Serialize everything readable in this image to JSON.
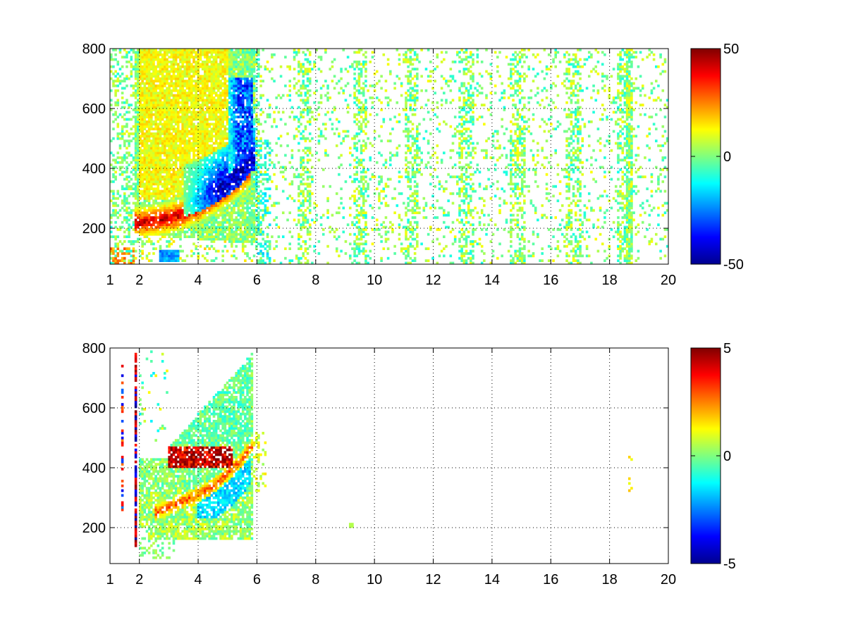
{
  "chart_data": [
    {
      "type": "heatmap",
      "title": "",
      "xlabel": "",
      "ylabel": "",
      "xlim": [
        1,
        20
      ],
      "ylim": [
        80,
        800
      ],
      "x_ticks": [
        1,
        2,
        4,
        6,
        8,
        10,
        12,
        14,
        16,
        18,
        20
      ],
      "x_tick_labels": [
        "1",
        "2",
        "4",
        "6",
        "8",
        "10",
        "12",
        "14",
        "16",
        "18",
        "20"
      ],
      "y_ticks": [
        200,
        400,
        600,
        800
      ],
      "y_tick_labels": [
        "200",
        "400",
        "600",
        "800"
      ],
      "grid": true,
      "colormap": "jet",
      "clim": [
        -50,
        50
      ],
      "colorbar_ticks": [
        -50,
        0,
        50
      ],
      "colorbar_tick_labels": [
        "-50",
        "0",
        "50"
      ],
      "colorbar_placement": "right",
      "features": [
        {
          "kind": "ridge",
          "sign": "positive",
          "x": [
            2.0,
            2.5,
            3.0,
            3.5,
            4.0,
            4.5,
            5.0,
            5.5,
            5.8
          ],
          "y": [
            220,
            225,
            235,
            250,
            270,
            300,
            330,
            370,
            400
          ],
          "peak": 48
        },
        {
          "kind": "ridge",
          "sign": "negative",
          "x": [
            3.5,
            4.0,
            4.5,
            5.0,
            5.5,
            5.8
          ],
          "y": [
            250,
            265,
            290,
            320,
            360,
            400
          ],
          "peak": -48
        },
        {
          "kind": "band",
          "sign": "negative",
          "x": [
            5.0,
            5.9
          ],
          "y": [
            180,
            700
          ],
          "peak": -35
        },
        {
          "kind": "band",
          "sign": "positive",
          "x": [
            2.0,
            5.0
          ],
          "y": [
            300,
            800
          ],
          "peak": 15
        },
        {
          "kind": "spot",
          "sign": "negative",
          "x": 3.0,
          "y": 110,
          "peak": -25
        },
        {
          "kind": "noise",
          "x": [
            6,
            20
          ],
          "y": [
            80,
            800
          ],
          "density": 0.12,
          "amplitude": 12
        },
        {
          "kind": "stripe",
          "x": 18.7,
          "y": [
            80,
            800
          ],
          "amplitude": 12
        }
      ]
    },
    {
      "type": "heatmap",
      "title": "",
      "xlabel": "",
      "ylabel": "",
      "xlim": [
        1,
        20
      ],
      "ylim": [
        80,
        800
      ],
      "x_ticks": [
        1,
        2,
        4,
        6,
        8,
        10,
        12,
        14,
        16,
        18,
        20
      ],
      "x_tick_labels": [
        "1",
        "2",
        "4",
        "6",
        "8",
        "10",
        "12",
        "14",
        "16",
        "18",
        "20"
      ],
      "y_ticks": [
        200,
        400,
        600,
        800
      ],
      "y_tick_labels": [
        "200",
        "400",
        "600",
        "800"
      ],
      "grid": true,
      "colormap": "jet",
      "clim": [
        -5,
        5
      ],
      "colorbar_ticks": [
        -5,
        0,
        5
      ],
      "colorbar_tick_labels": [
        "-5",
        "0",
        "5"
      ],
      "colorbar_placement": "right",
      "features": [
        {
          "kind": "band",
          "sign": "positive",
          "x": [
            3.0,
            5.2
          ],
          "y": [
            400,
            470
          ],
          "peak": 5
        },
        {
          "kind": "ridge",
          "sign": "positive",
          "x": [
            2.5,
            3.0,
            3.5,
            4.0,
            4.5,
            5.0,
            5.5,
            5.8
          ],
          "y": [
            250,
            270,
            290,
            310,
            340,
            380,
            430,
            470
          ],
          "peak": 3
        },
        {
          "kind": "band",
          "sign": "negative",
          "x": [
            4.0,
            5.8
          ],
          "y": [
            230,
            420
          ],
          "peak": -2
        },
        {
          "kind": "band",
          "sign": "neutral",
          "x": [
            2.0,
            5.8
          ],
          "y": [
            150,
            330
          ],
          "peak": 0.3
        },
        {
          "kind": "band",
          "sign": "neutral",
          "x": [
            3.0,
            5.8
          ],
          "y": [
            480,
            780
          ],
          "peak": 0
        },
        {
          "kind": "stripe",
          "x": 1.85,
          "y": [
            140,
            780
          ],
          "amplitude": 5
        },
        {
          "kind": "stripe",
          "x": 1.4,
          "y": [
            260,
            740
          ],
          "amplitude": 4
        },
        {
          "kind": "spot",
          "sign": "neutral",
          "x": 18.7,
          "y": 390,
          "peak": 1
        }
      ]
    }
  ]
}
